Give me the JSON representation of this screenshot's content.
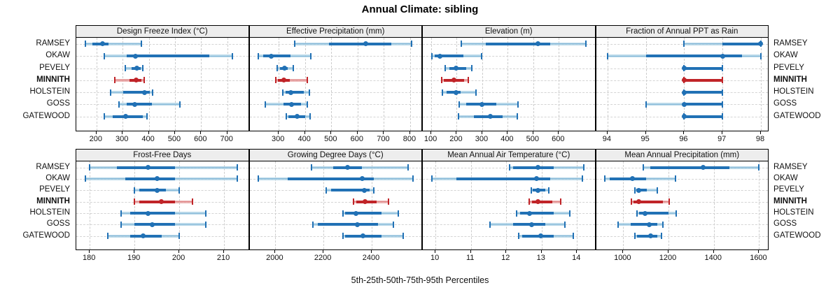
{
  "title": "Annual Climate: sibling",
  "caption": "5th-25th-50th-75th-95th Percentiles",
  "stations": [
    "RAMSEY",
    "OKAW",
    "PEVELY",
    "MINNITH",
    "HOLSTEIN",
    "GOSS",
    "GATEWOOD"
  ],
  "highlight_station": "MINNITH",
  "colors": {
    "blue_dark": "#2171b5",
    "blue_light": "#a6cee3",
    "red_dark": "#c02428",
    "red_light": "#e9a3a3",
    "strip_bg": "#ededed",
    "grid": "#cccccc"
  },
  "chart_data": {
    "type": "dot-whisker-percentiles",
    "percentiles": [
      5,
      25,
      50,
      75,
      95
    ],
    "note": "values per station are [p5,p25,p50,p75,p95]; dot=p50, thick band=p25-p75, capped whisker=p5-p95",
    "panels": [
      {
        "slug": "design-freeze-index",
        "title": "Design Freeze Index (°C)",
        "row": 1,
        "xlim": [
          123,
          785
        ],
        "ticks": [
          200,
          300,
          400,
          500,
          600,
          700
        ],
        "values": {
          "RAMSEY": [
            158,
            184,
            222,
            245,
            372
          ],
          "OKAW": [
            230,
            315,
            350,
            630,
            720
          ],
          "PEVELY": [
            310,
            335,
            355,
            368,
            378
          ],
          "MINNITH": [
            270,
            325,
            352,
            372,
            382
          ],
          "HOLSTEIN": [
            255,
            303,
            383,
            405,
            415
          ],
          "GOSS": [
            285,
            315,
            347,
            413,
            520
          ],
          "GATEWOOD": [
            230,
            262,
            312,
            378,
            393
          ]
        }
      },
      {
        "slug": "effective-precipitation",
        "title": "Effective Precipitation (mm)",
        "row": 1,
        "xlim": [
          189,
          848
        ],
        "ticks": [
          300,
          400,
          500,
          600,
          700,
          800
        ],
        "values": {
          "RAMSEY": [
            362,
            490,
            632,
            728,
            806
          ],
          "OKAW": [
            223,
            240,
            272,
            345,
            422
          ],
          "PEVELY": [
            295,
            306,
            321,
            335,
            355
          ],
          "MINNITH": [
            288,
            298,
            320,
            342,
            409
          ],
          "HOLSTEIN": [
            315,
            325,
            345,
            395,
            416
          ],
          "GOSS": [
            249,
            318,
            348,
            386,
            408
          ],
          "GATEWOOD": [
            328,
            336,
            371,
            400,
            419
          ]
        }
      },
      {
        "slug": "elevation",
        "title": "Elevation (m)",
        "row": 1,
        "xlim": [
          67,
          746
        ],
        "ticks": [
          100,
          200,
          300,
          400,
          500,
          600
        ],
        "values": {
          "RAMSEY": [
            218,
            315,
            519,
            565,
            705
          ],
          "OKAW": [
            103,
            113,
            135,
            225,
            298
          ],
          "PEVELY": [
            154,
            171,
            196,
            238,
            259
          ],
          "MINNITH": [
            141,
            150,
            190,
            230,
            245
          ],
          "HOLSTEIN": [
            143,
            159,
            198,
            215,
            276
          ],
          "GOSS": [
            209,
            237,
            299,
            355,
            441
          ],
          "GATEWOOD": [
            206,
            267,
            333,
            379,
            436
          ]
        }
      },
      {
        "slug": "fraction-ppt-as-rain",
        "title": "Fraction of Annual PPT as Rain",
        "row": 1,
        "xlim": [
          93.7,
          98.22
        ],
        "ticks": [
          94,
          95,
          96,
          97,
          98
        ],
        "values": {
          "RAMSEY": [
            96,
            97,
            98,
            98,
            98
          ],
          "OKAW": [
            94,
            95,
            97,
            97.5,
            98
          ],
          "PEVELY": [
            96,
            96,
            96,
            97,
            97
          ],
          "MINNITH": [
            96,
            96,
            96,
            97,
            97
          ],
          "HOLSTEIN": [
            96,
            96,
            96,
            97,
            97
          ],
          "GOSS": [
            95,
            96,
            96,
            97,
            97
          ],
          "GATEWOOD": [
            96,
            96,
            96,
            97,
            97
          ]
        }
      },
      {
        "slug": "frost-free-days",
        "title": "Frost-Free Days",
        "row": 2,
        "xlim": [
          177,
          215.7
        ],
        "ticks": [
          180,
          190,
          200,
          210
        ],
        "values": {
          "RAMSEY": [
            180,
            186,
            193,
            199,
            213
          ],
          "OKAW": [
            179,
            188,
            195,
            199,
            213
          ],
          "PEVELY": [
            190,
            191,
            195,
            197,
            200
          ],
          "MINNITH": [
            190,
            191,
            196,
            199,
            203
          ],
          "HOLSTEIN": [
            187,
            189,
            193,
            199,
            206
          ],
          "GOSS": [
            187,
            190,
            194,
            199,
            206
          ],
          "GATEWOOD": [
            184,
            189,
            192,
            196,
            200
          ]
        }
      },
      {
        "slug": "growing-degree-days",
        "title": "Growing Degree Days (°C)",
        "row": 2,
        "xlim": [
          1893,
          2612
        ],
        "ticks": [
          2000,
          2200,
          2400
        ],
        "values": {
          "RAMSEY": [
            2150,
            2240,
            2300,
            2360,
            2550
          ],
          "OKAW": [
            1930,
            2050,
            2360,
            2410,
            2570
          ],
          "PEVELY": [
            2210,
            2230,
            2370,
            2390,
            2410
          ],
          "MINNITH": [
            2325,
            2335,
            2373,
            2420,
            2470
          ],
          "HOLSTEIN": [
            2280,
            2290,
            2335,
            2440,
            2510
          ],
          "GOSS": [
            2155,
            2175,
            2340,
            2425,
            2490
          ],
          "GATEWOOD": [
            2280,
            2290,
            2365,
            2440,
            2530
          ]
        }
      },
      {
        "slug": "mean-annual-air-temperature",
        "title": "Mean Annual Air Temperature (°C)",
        "row": 2,
        "xlim": [
          9.64,
          14.54
        ],
        "ticks": [
          10,
          11,
          12,
          13,
          14
        ],
        "values": {
          "RAMSEY": [
            12.1,
            12.2,
            12.9,
            13.35,
            14.2
          ],
          "OKAW": [
            9.9,
            10.6,
            12.85,
            13.25,
            14.15
          ],
          "PEVELY": [
            12.7,
            12.75,
            12.9,
            13.1,
            13.2
          ],
          "MINNITH": [
            12.65,
            12.72,
            12.9,
            13.3,
            13.55
          ],
          "HOLSTEIN": [
            12.3,
            12.4,
            12.65,
            13.35,
            13.8
          ],
          "GOSS": [
            11.55,
            12.2,
            12.72,
            13.1,
            13.65
          ],
          "GATEWOOD": [
            12.35,
            12.45,
            12.98,
            13.35,
            13.9
          ]
        }
      },
      {
        "slug": "mean-annual-precipitation",
        "title": "Mean Annual Precipitation (mm)",
        "row": 2,
        "xlim": [
          880,
          1645
        ],
        "ticks": [
          1000,
          1200,
          1400,
          1600
        ],
        "values": {
          "RAMSEY": [
            1090,
            1120,
            1353,
            1470,
            1600
          ],
          "OKAW": [
            920,
            940,
            1042,
            1100,
            1230
          ],
          "PEVELY": [
            1050,
            1057,
            1070,
            1105,
            1150
          ],
          "MINNITH": [
            1036,
            1046,
            1070,
            1175,
            1202
          ],
          "HOLSTEIN": [
            1061,
            1071,
            1096,
            1200,
            1233
          ],
          "GOSS": [
            976,
            1034,
            1115,
            1150,
            1174
          ],
          "GATEWOOD": [
            1051,
            1062,
            1120,
            1150,
            1169
          ]
        }
      }
    ]
  }
}
